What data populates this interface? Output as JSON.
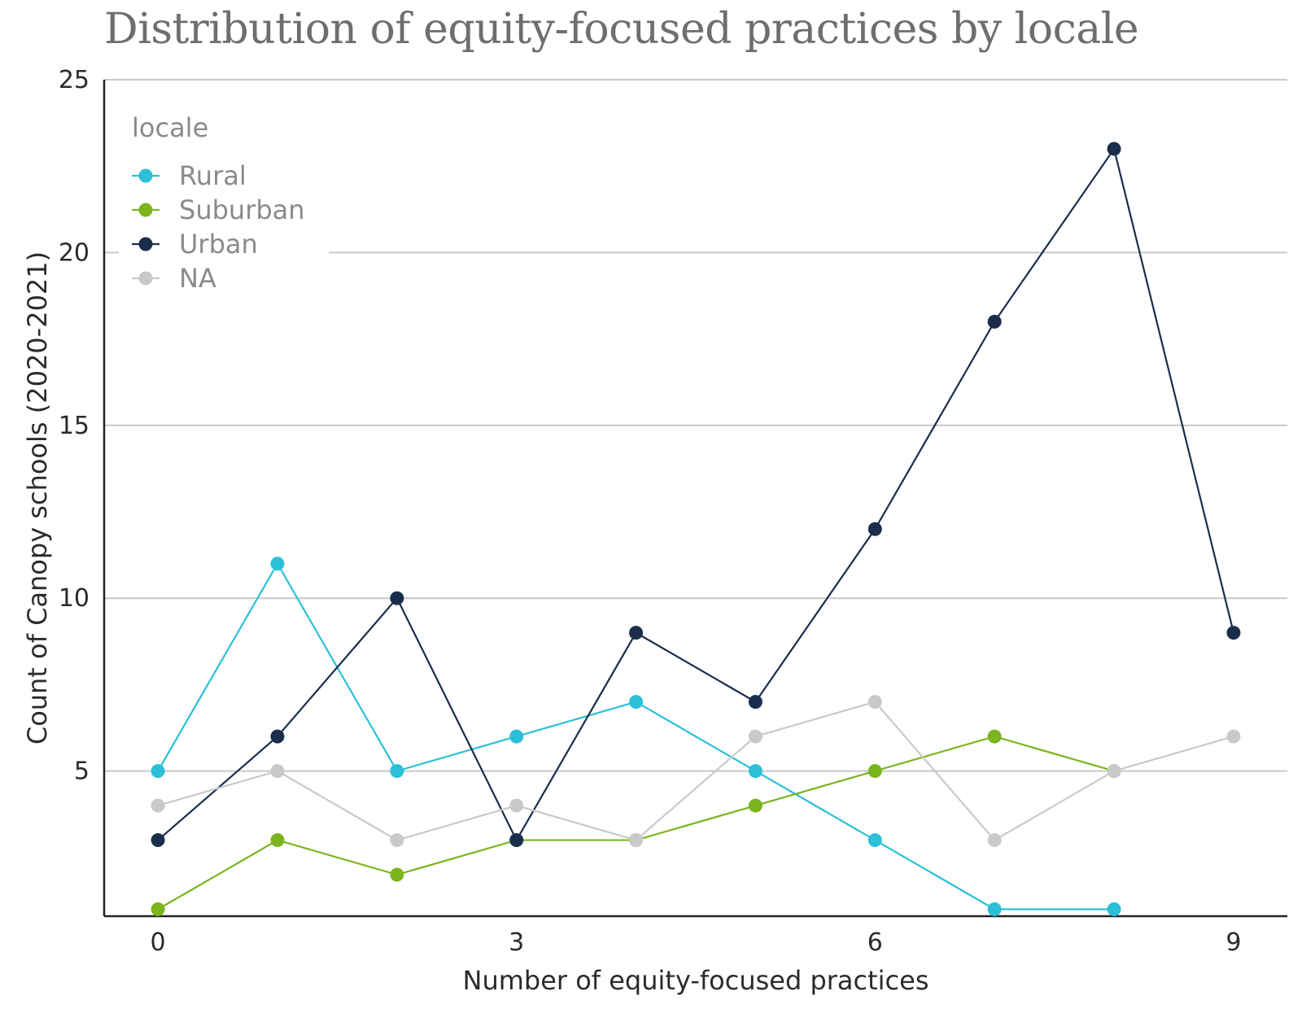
{
  "chart_data": {
    "type": "line",
    "title": "Distribution of equity-focused practices by locale",
    "xlabel": "Number of equity-focused practices",
    "ylabel": "Count of Canopy schools (2020-2021)",
    "x": [
      0,
      1,
      2,
      3,
      4,
      5,
      6,
      7,
      8,
      9
    ],
    "xlim": [
      -0.45,
      9.45
    ],
    "ylim": [
      0.8,
      25
    ],
    "xticks": [
      "0",
      "3",
      "6",
      "9"
    ],
    "yticks": [
      "5",
      "10",
      "15",
      "20",
      "25"
    ],
    "grid": "horizontal",
    "legend": {
      "title": "locale",
      "position": "top-left"
    },
    "series": [
      {
        "name": "Rural",
        "color": "#2bc0d8",
        "x": [
          0,
          1,
          2,
          3,
          4,
          5,
          6,
          7,
          8
        ],
        "values": [
          5,
          11,
          5,
          6,
          7,
          5,
          3,
          1,
          1
        ]
      },
      {
        "name": "Suburban",
        "color": "#7ab51d",
        "x": [
          0,
          1,
          2,
          3,
          4,
          5,
          6,
          7,
          8
        ],
        "values": [
          1,
          3,
          2,
          3,
          3,
          4,
          5,
          6,
          5
        ]
      },
      {
        "name": "Urban",
        "color": "#1a2e4c",
        "x": [
          0,
          1,
          2,
          3,
          4,
          5,
          6,
          7,
          8,
          9
        ],
        "values": [
          3,
          6,
          10,
          3,
          9,
          7,
          12,
          18,
          23,
          9
        ]
      },
      {
        "name": "NA",
        "color": "#c9c9c9",
        "x": [
          0,
          1,
          2,
          3,
          4,
          5,
          6,
          7,
          8,
          9
        ],
        "values": [
          4,
          5,
          3,
          4,
          3,
          6,
          7,
          3,
          5,
          6
        ]
      }
    ]
  }
}
